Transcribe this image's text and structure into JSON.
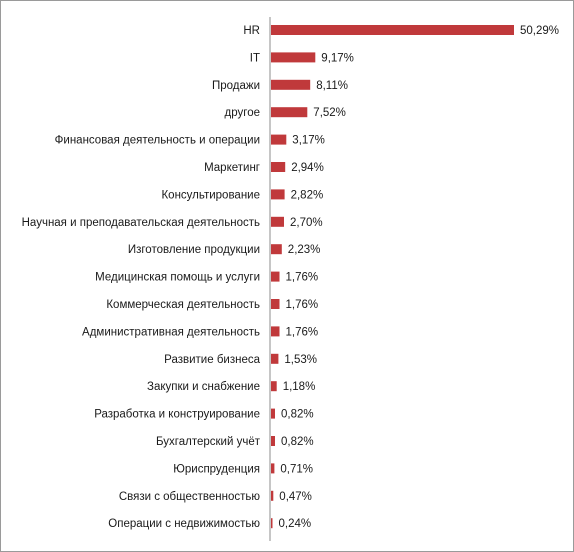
{
  "chart_data": {
    "type": "bar",
    "orientation": "horizontal",
    "categories": [
      "HR",
      "IT",
      "Продажи",
      "другое",
      "Финансовая деятельность и операции",
      "Маркетинг",
      "Консультирование",
      "Научная и преподавательская деятельность",
      "Изготовление продукции",
      "Медицинская помощь и услуги",
      "Коммерческая деятельность",
      "Административная деятельность",
      "Развитие бизнеса",
      "Закупки и снабжение",
      "Разработка и конструирование",
      "Бухгалтерский учёт",
      "Юриспруденция",
      "Связи с общественностью",
      "Операции с недвижимостью"
    ],
    "values": [
      50.29,
      9.17,
      8.11,
      7.52,
      3.17,
      2.94,
      2.82,
      2.7,
      2.23,
      1.76,
      1.76,
      1.76,
      1.53,
      1.18,
      0.82,
      0.82,
      0.71,
      0.47,
      0.24
    ],
    "data_labels": [
      "50,29%",
      "9,17%",
      "8,11%",
      "7,52%",
      "3,17%",
      "2,94%",
      "2,82%",
      "2,70%",
      "2,23%",
      "1,76%",
      "1,76%",
      "1,76%",
      "1,53%",
      "1,18%",
      "0,82%",
      "0,82%",
      "0,71%",
      "0,47%",
      "0,24%"
    ],
    "title": "",
    "xlabel": "",
    "ylabel": "",
    "xlim": [
      0,
      50.29
    ],
    "grid": false,
    "legend": "none",
    "bar_color": "#c0393b",
    "axis_color": "#8c8c8c",
    "border_color": "#9a9a9a"
  }
}
